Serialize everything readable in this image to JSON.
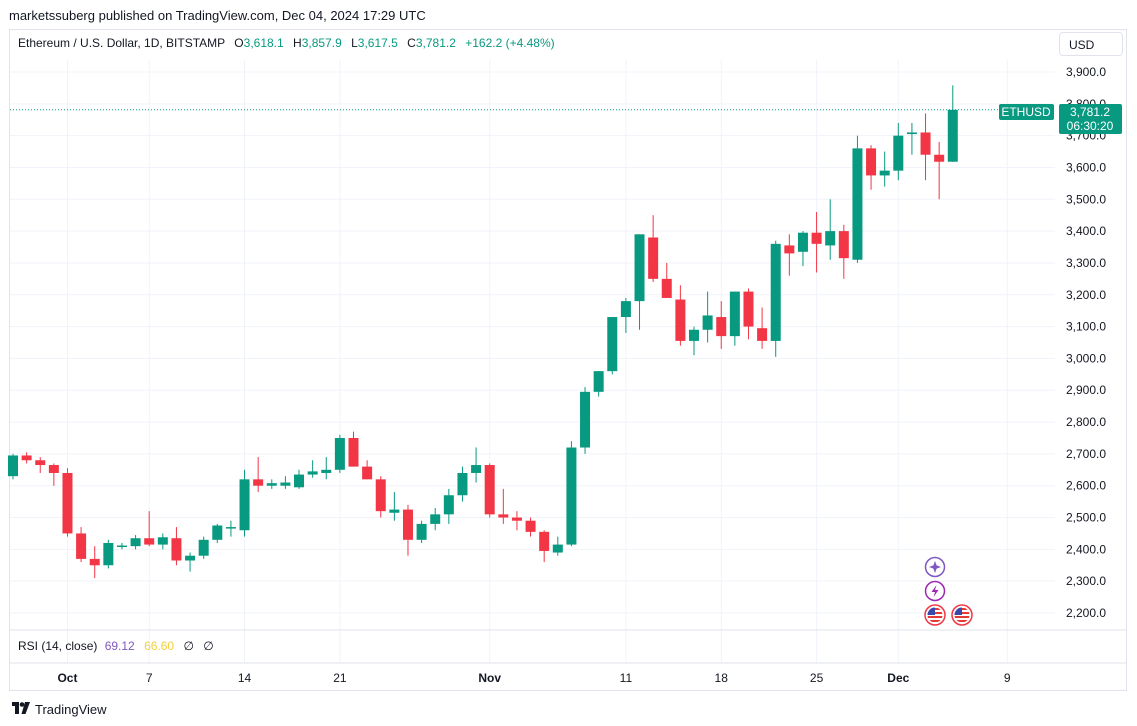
{
  "header": {
    "publisher_line": "marketssuberg published on TradingView.com, Dec 04, 2024 17:29 UTC"
  },
  "legend": {
    "symbol": "Ethereum / U.S. Dollar, 1D, BITSTAMP",
    "o_label": "O",
    "o_value": "3,618.1",
    "h_label": "H",
    "h_value": "3,857.9",
    "l_label": "L",
    "l_value": "3,617.5",
    "c_label": "C",
    "c_value": "3,781.2",
    "change": "+162.2 (+4.48%)"
  },
  "currency_button": "USD",
  "price_tag": {
    "ticker": "ETHUSD",
    "price": "3,781.2",
    "countdown": "06:30:20"
  },
  "rsi": {
    "label": "RSI (14, close)",
    "value1": "69.12",
    "value2": "66.60",
    "sym1": "∅",
    "sym2": "∅"
  },
  "footer": {
    "brand": "TradingView"
  },
  "icons": [
    "sparkle-icon",
    "lightning-icon",
    "us-flag-icon",
    "us-flag-icon"
  ],
  "colors": {
    "up": "#089981",
    "down": "#f23645",
    "grid": "#f0f3fa",
    "text": "#131722"
  },
  "chart_data": {
    "type": "candlestick",
    "title": "Ethereum / U.S. Dollar, 1D, BITSTAMP",
    "y_ticks": [
      2200,
      2300,
      2400,
      2500,
      2600,
      2700,
      2800,
      2900,
      3000,
      3100,
      3200,
      3300,
      3400,
      3500,
      3600,
      3700,
      3800,
      3900
    ],
    "y_tick_labels": [
      "2,200.0",
      "2,300.0",
      "2,400.0",
      "2,500.0",
      "2,600.0",
      "2,700.0",
      "2,800.0",
      "2,900.0",
      "3,000.0",
      "3,100.0",
      "3,200.0",
      "3,300.0",
      "3,400.0",
      "3,500.0",
      "3,600.0",
      "3,700.0",
      "3,800.0",
      "3,900.0"
    ],
    "x_tick_labels": [
      {
        "label": "Oct",
        "bar": 4,
        "bold": true
      },
      {
        "label": "7",
        "bar": 10,
        "bold": false
      },
      {
        "label": "14",
        "bar": 17,
        "bold": false
      },
      {
        "label": "21",
        "bar": 24,
        "bold": false
      },
      {
        "label": "Nov",
        "bar": 35,
        "bold": true
      },
      {
        "label": "11",
        "bar": 45,
        "bold": false
      },
      {
        "label": "18",
        "bar": 52,
        "bold": false
      },
      {
        "label": "25",
        "bar": 59,
        "bold": false
      },
      {
        "label": "Dec",
        "bar": 65,
        "bold": true
      },
      {
        "label": "9",
        "bar": 73,
        "bold": false
      }
    ],
    "ohlc": [
      [
        2630,
        2700,
        2620,
        2695
      ],
      [
        2695,
        2705,
        2670,
        2680
      ],
      [
        2680,
        2690,
        2640,
        2665
      ],
      [
        2665,
        2670,
        2600,
        2640
      ],
      [
        2640,
        2655,
        2440,
        2450
      ],
      [
        2450,
        2470,
        2360,
        2370
      ],
      [
        2370,
        2410,
        2310,
        2350
      ],
      [
        2350,
        2430,
        2340,
        2420
      ],
      [
        2410,
        2420,
        2400,
        2412
      ],
      [
        2410,
        2445,
        2400,
        2435
      ],
      [
        2435,
        2520,
        2410,
        2415
      ],
      [
        2415,
        2450,
        2400,
        2438
      ],
      [
        2435,
        2470,
        2350,
        2365
      ],
      [
        2365,
        2390,
        2330,
        2380
      ],
      [
        2380,
        2440,
        2370,
        2430
      ],
      [
        2430,
        2480,
        2420,
        2475
      ],
      [
        2470,
        2490,
        2440,
        2470
      ],
      [
        2460,
        2650,
        2440,
        2620
      ],
      [
        2620,
        2690,
        2580,
        2600
      ],
      [
        2600,
        2620,
        2590,
        2608
      ],
      [
        2600,
        2630,
        2590,
        2610
      ],
      [
        2595,
        2650,
        2590,
        2635
      ],
      [
        2635,
        2680,
        2625,
        2645
      ],
      [
        2640,
        2690,
        2620,
        2650
      ],
      [
        2650,
        2760,
        2640,
        2750
      ],
      [
        2750,
        2770,
        2660,
        2660
      ],
      [
        2660,
        2680,
        2620,
        2620
      ],
      [
        2620,
        2630,
        2500,
        2520
      ],
      [
        2515,
        2580,
        2490,
        2525
      ],
      [
        2525,
        2540,
        2380,
        2430
      ],
      [
        2430,
        2490,
        2420,
        2480
      ],
      [
        2480,
        2530,
        2460,
        2510
      ],
      [
        2510,
        2590,
        2480,
        2570
      ],
      [
        2570,
        2660,
        2550,
        2640
      ],
      [
        2640,
        2720,
        2610,
        2665
      ],
      [
        2665,
        2670,
        2500,
        2510
      ],
      [
        2510,
        2590,
        2480,
        2500
      ],
      [
        2500,
        2520,
        2460,
        2490
      ],
      [
        2490,
        2500,
        2440,
        2455
      ],
      [
        2455,
        2460,
        2360,
        2395
      ],
      [
        2390,
        2440,
        2380,
        2415
      ],
      [
        2415,
        2740,
        2410,
        2720
      ],
      [
        2720,
        2910,
        2700,
        2895
      ],
      [
        2895,
        2960,
        2880,
        2960
      ],
      [
        2960,
        3130,
        2950,
        3130
      ],
      [
        3130,
        3190,
        3080,
        3180
      ],
      [
        3180,
        3390,
        3090,
        3390
      ],
      [
        3380,
        3450,
        3240,
        3250
      ],
      [
        3250,
        3300,
        3190,
        3190
      ],
      [
        3185,
        3230,
        3040,
        3055
      ],
      [
        3055,
        3100,
        3010,
        3090
      ],
      [
        3090,
        3210,
        3050,
        3135
      ],
      [
        3130,
        3180,
        3030,
        3070
      ],
      [
        3070,
        3210,
        3040,
        3210
      ],
      [
        3210,
        3220,
        3060,
        3100
      ],
      [
        3095,
        3160,
        3030,
        3055
      ],
      [
        3055,
        3370,
        3005,
        3360
      ],
      [
        3355,
        3390,
        3260,
        3330
      ],
      [
        3335,
        3400,
        3290,
        3395
      ],
      [
        3395,
        3460,
        3270,
        3360
      ],
      [
        3355,
        3500,
        3310,
        3400
      ],
      [
        3400,
        3420,
        3250,
        3315
      ],
      [
        3310,
        3700,
        3300,
        3660
      ],
      [
        3660,
        3670,
        3530,
        3575
      ],
      [
        3575,
        3650,
        3540,
        3590
      ],
      [
        3590,
        3740,
        3560,
        3700
      ],
      [
        3705,
        3740,
        3640,
        3710
      ],
      [
        3710,
        3770,
        3560,
        3640
      ],
      [
        3640,
        3680,
        3500,
        3618
      ],
      [
        3618.1,
        3857.9,
        3617.5,
        3781.2
      ]
    ]
  }
}
